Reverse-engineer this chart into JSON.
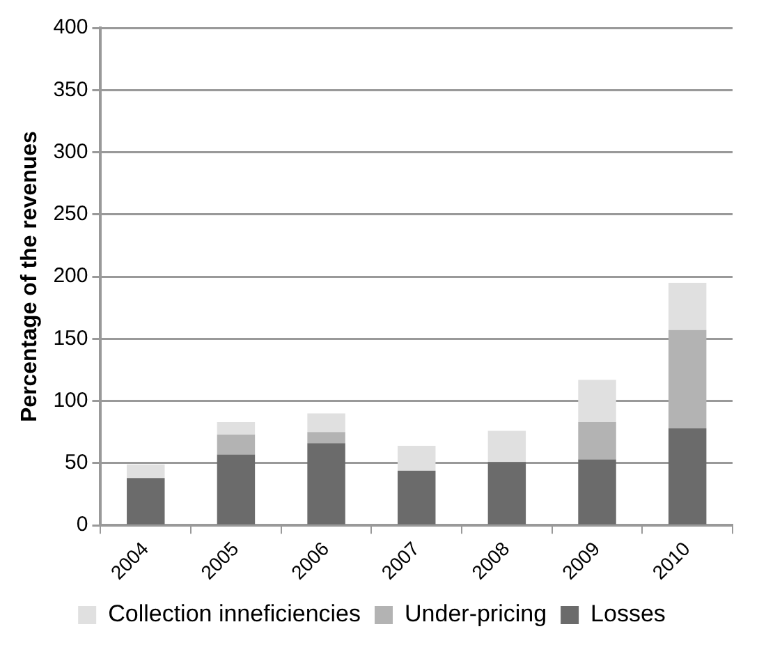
{
  "chart_data": {
    "type": "bar",
    "stacked": true,
    "ylabel": "Percentage of the revenues",
    "categories": [
      "2004",
      "2005",
      "2006",
      "2007",
      "2008",
      "2009",
      "2010"
    ],
    "series": [
      {
        "name": "Losses",
        "color": "#6b6b6b",
        "values": [
          38,
          57,
          66,
          44,
          51,
          53,
          78
        ]
      },
      {
        "name": "Under-pricing",
        "color": "#b3b3b3",
        "values": [
          0,
          16,
          9,
          0,
          0,
          30,
          79
        ]
      },
      {
        "name": "Collection inneficiencies",
        "color": "#e0e0e0",
        "values": [
          11,
          10,
          15,
          20,
          25,
          34,
          38
        ]
      }
    ],
    "ylim": [
      0,
      400
    ],
    "yticks": [
      0,
      50,
      100,
      150,
      200,
      250,
      300,
      350,
      400
    ],
    "grid": "y",
    "legend": "bottom"
  }
}
